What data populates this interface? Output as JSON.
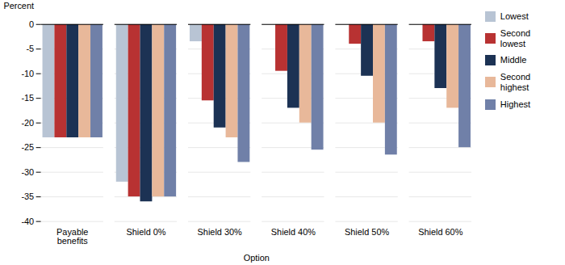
{
  "chart_data": {
    "type": "bar",
    "xlabel": "Option",
    "ylabel": "Percent",
    "categories": [
      "Payable\nbenefits",
      "Shield 0%",
      "Shield 30%",
      "Shield 40%",
      "Shield 50%",
      "Shield 60%"
    ],
    "series": [
      {
        "name": "Lowest",
        "color": "#b8c4d4",
        "values": [
          -23,
          -32,
          -3.5,
          0,
          0,
          0
        ]
      },
      {
        "name": "Second\nlowest",
        "color": "#b83232",
        "values": [
          -23,
          -35,
          -15.5,
          -9.5,
          -4,
          -3.5
        ]
      },
      {
        "name": "Middle",
        "color": "#1c3254",
        "values": [
          -23,
          -36,
          -21,
          -17,
          -10.5,
          -13
        ]
      },
      {
        "name": "Second\nhighest",
        "color": "#e8b89a",
        "values": [
          -23,
          -35,
          -23,
          -20,
          -20,
          -17
        ]
      },
      {
        "name": "Highest",
        "color": "#7080a8",
        "values": [
          -23,
          -35,
          -28,
          -25.5,
          -26.5,
          -25
        ]
      }
    ],
    "ylim": [
      -40,
      0
    ],
    "yticks": [
      0,
      -5,
      -10,
      -15,
      -20,
      -25,
      -30,
      -35,
      -40
    ],
    "grid": true,
    "legend": "right"
  }
}
